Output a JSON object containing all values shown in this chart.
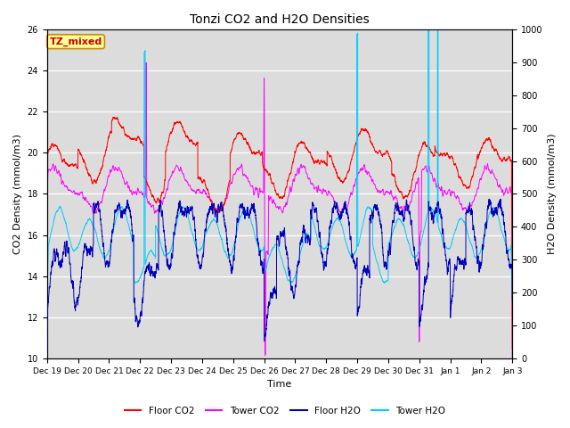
{
  "title": "Tonzi CO2 and H2O Densities",
  "xlabel": "Time",
  "ylabel_left": "CO2 Density (mmol/m3)",
  "ylabel_right": "H2O Density (mmol/m3)",
  "ylim_left": [
    10,
    26
  ],
  "ylim_right": [
    0,
    1000
  ],
  "background_color": "#dcdcdc",
  "annotation_text": "TZ_mixed",
  "annotation_color": "#cc0000",
  "annotation_bg": "#ffff99",
  "annotation_border": "#cc8800",
  "tick_labels": [
    "Dec 19",
    "Dec 20",
    "Dec 21",
    "Dec 22",
    "Dec 23",
    "Dec 24",
    "Dec 25",
    "Dec 26",
    "Dec 27",
    "Dec 28",
    "Dec 29",
    "Dec 30",
    "Dec 31",
    "Jan 1",
    "Jan 2",
    "Jan 3"
  ],
  "legend_labels": [
    "Floor CO2",
    "Tower CO2",
    "Floor H2O",
    "Tower H2O"
  ],
  "legend_colors": [
    "#ff0000",
    "#ff00ff",
    "#0000bb",
    "#00ccff"
  ],
  "line_colors": {
    "floor_co2": "#ff0000",
    "tower_co2": "#ff00ff",
    "floor_h2o": "#0000bb",
    "tower_h2o": "#00ccff"
  },
  "figsize": [
    6.4,
    4.8
  ],
  "dpi": 100
}
